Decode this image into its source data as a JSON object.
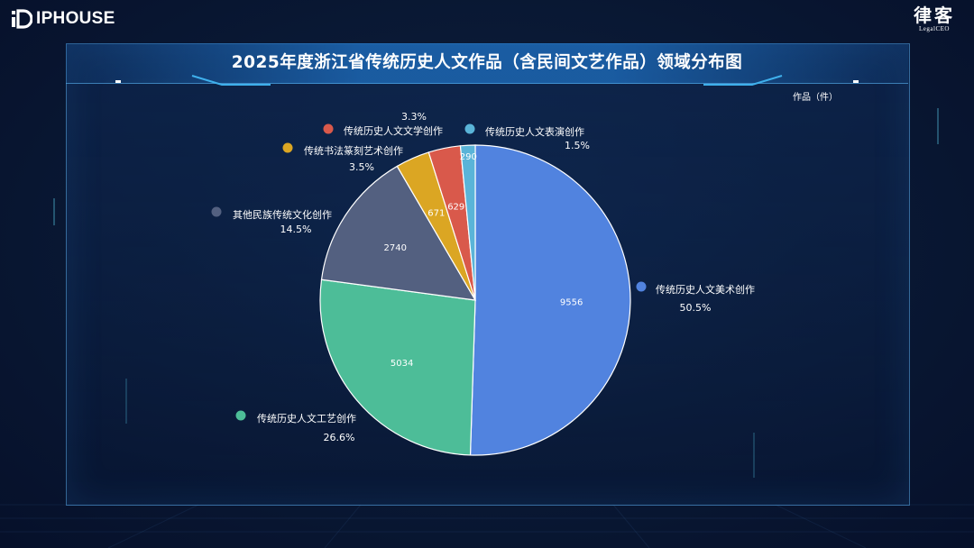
{
  "brand": {
    "left_logo": "IPHOUSE",
    "right_logo_cn": "律客",
    "right_logo_en": "LegalCEO"
  },
  "chart_data": {
    "type": "pie",
    "title": "2025年度浙江省传统历史人文作品（含民间文艺作品）领域分布图",
    "unit_label": "作品（件）",
    "slices": [
      {
        "name": "传统历史人文美术创作",
        "value": 9556,
        "percent": "50.5%",
        "color": "#5183df"
      },
      {
        "name": "传统历史人文工艺创作",
        "value": 5034,
        "percent": "26.6%",
        "color": "#4dbd98"
      },
      {
        "name": "其他民族传统文化创作",
        "value": 2740,
        "percent": "14.5%",
        "color": "#536080"
      },
      {
        "name": "传统书法篆刻艺术创作",
        "value": 671,
        "percent": "3.5%",
        "color": "#dba623"
      },
      {
        "name": "传统历史人文文学创作",
        "value": 629,
        "percent": "3.3%",
        "color": "#d9594b"
      },
      {
        "name": "传统历史人文表演创作",
        "value": 290,
        "percent": "1.5%",
        "color": "#5ab4d8"
      }
    ]
  }
}
